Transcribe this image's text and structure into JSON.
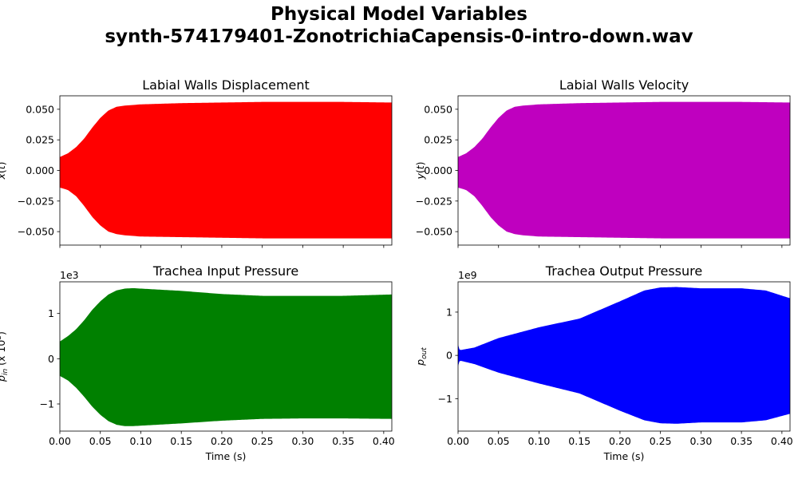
{
  "figure": {
    "title_line1": "Physical Model Variables",
    "title_line2": "synth-574179401-ZonotrichiaCapensis-0-intro-down.wav"
  },
  "chart_data": [
    {
      "type": "area",
      "title": "Labial Walls Displacement",
      "xlabel": "",
      "ylabel": "x(t)",
      "color": "#ff0000",
      "xlim": [
        0.0,
        0.41
      ],
      "ylim": [
        -0.061,
        0.061
      ],
      "xticks": [
        0.0,
        0.05,
        0.1,
        0.15,
        0.2,
        0.25,
        0.3,
        0.35,
        0.4
      ],
      "xtick_labels": [],
      "yticks": [
        -0.05,
        -0.025,
        0.0,
        0.025,
        0.05
      ],
      "ytick_labels": [
        "−0.050",
        "−0.025",
        "0.000",
        "0.025",
        "0.050"
      ],
      "offset_label": "",
      "envelope": {
        "x": [
          0.0,
          0.01,
          0.02,
          0.03,
          0.04,
          0.05,
          0.06,
          0.07,
          0.08,
          0.1,
          0.15,
          0.2,
          0.25,
          0.3,
          0.35,
          0.41
        ],
        "upper": [
          0.011,
          0.014,
          0.019,
          0.026,
          0.035,
          0.043,
          0.049,
          0.052,
          0.053,
          0.054,
          0.055,
          0.0555,
          0.056,
          0.056,
          0.056,
          0.0555
        ],
        "lower": [
          -0.014,
          -0.016,
          -0.021,
          -0.029,
          -0.038,
          -0.045,
          -0.05,
          -0.052,
          -0.053,
          -0.054,
          -0.0545,
          -0.055,
          -0.0555,
          -0.0555,
          -0.0555,
          -0.0555
        ]
      }
    },
    {
      "type": "area",
      "title": "Labial Walls Velocity",
      "xlabel": "",
      "ylabel": "y(t)",
      "color": "#bf00bf",
      "xlim": [
        0.0,
        0.41
      ],
      "ylim": [
        -0.061,
        0.061
      ],
      "xticks": [
        0.0,
        0.05,
        0.1,
        0.15,
        0.2,
        0.25,
        0.3,
        0.35,
        0.4
      ],
      "xtick_labels": [],
      "yticks": [
        -0.05,
        -0.025,
        0.0,
        0.025,
        0.05
      ],
      "ytick_labels": [
        "−0.050",
        "−0.025",
        "0.000",
        "0.025",
        "0.050"
      ],
      "offset_label": "",
      "envelope": {
        "x": [
          0.0,
          0.01,
          0.02,
          0.03,
          0.04,
          0.05,
          0.06,
          0.07,
          0.08,
          0.1,
          0.15,
          0.2,
          0.25,
          0.3,
          0.35,
          0.41
        ],
        "upper": [
          0.011,
          0.014,
          0.019,
          0.026,
          0.035,
          0.043,
          0.049,
          0.052,
          0.053,
          0.054,
          0.055,
          0.0555,
          0.056,
          0.056,
          0.056,
          0.0555
        ],
        "lower": [
          -0.014,
          -0.016,
          -0.021,
          -0.029,
          -0.038,
          -0.045,
          -0.05,
          -0.052,
          -0.053,
          -0.054,
          -0.0545,
          -0.055,
          -0.0555,
          -0.0555,
          -0.0555,
          -0.0555
        ]
      }
    },
    {
      "type": "area",
      "title": "Trachea Input Pressure",
      "xlabel": "Time (s)",
      "ylabel": "p_in (x 10^3)",
      "color": "#008000",
      "xlim": [
        0.0,
        0.41
      ],
      "ylim": [
        -1.6,
        1.7
      ],
      "xticks": [
        0.0,
        0.05,
        0.1,
        0.15,
        0.2,
        0.25,
        0.3,
        0.35,
        0.4
      ],
      "xtick_labels": [
        "0.00",
        "0.05",
        "0.10",
        "0.15",
        "0.20",
        "0.25",
        "0.30",
        "0.35",
        "0.40"
      ],
      "yticks": [
        -1,
        0,
        1
      ],
      "ytick_labels": [
        "−1",
        "0",
        "1"
      ],
      "offset_label": "1e3",
      "envelope": {
        "x": [
          0.0,
          0.01,
          0.02,
          0.03,
          0.04,
          0.05,
          0.06,
          0.07,
          0.08,
          0.09,
          0.1,
          0.15,
          0.2,
          0.25,
          0.3,
          0.35,
          0.41
        ],
        "upper": [
          0.38,
          0.5,
          0.65,
          0.85,
          1.08,
          1.27,
          1.42,
          1.51,
          1.55,
          1.56,
          1.55,
          1.5,
          1.43,
          1.39,
          1.39,
          1.39,
          1.42
        ],
        "lower": [
          -0.38,
          -0.48,
          -0.64,
          -0.84,
          -1.06,
          -1.24,
          -1.38,
          -1.46,
          -1.49,
          -1.49,
          -1.48,
          -1.43,
          -1.37,
          -1.33,
          -1.32,
          -1.32,
          -1.33
        ]
      }
    },
    {
      "type": "area",
      "title": "Trachea Output Pressure",
      "xlabel": "Time (s)",
      "ylabel": "p_out",
      "color": "#0000ff",
      "xlim": [
        0.0,
        0.41
      ],
      "ylim": [
        -1.75,
        1.7
      ],
      "xticks": [
        0.0,
        0.05,
        0.1,
        0.15,
        0.2,
        0.25,
        0.3,
        0.35,
        0.4
      ],
      "xtick_labels": [
        "0.00",
        "0.05",
        "0.10",
        "0.15",
        "0.20",
        "0.25",
        "0.30",
        "0.35",
        "0.40"
      ],
      "yticks": [
        -1,
        0,
        1
      ],
      "ytick_labels": [
        "−1",
        "0",
        "1"
      ],
      "offset_label": "1e9",
      "envelope": {
        "x": [
          0.0,
          0.002,
          0.02,
          0.05,
          0.1,
          0.15,
          0.2,
          0.23,
          0.25,
          0.27,
          0.3,
          0.35,
          0.38,
          0.41
        ],
        "upper": [
          0.25,
          0.12,
          0.18,
          0.4,
          0.65,
          0.85,
          1.25,
          1.5,
          1.57,
          1.58,
          1.55,
          1.55,
          1.5,
          1.32
        ],
        "lower": [
          -0.25,
          -0.12,
          -0.2,
          -0.4,
          -0.65,
          -0.88,
          -1.28,
          -1.5,
          -1.57,
          -1.58,
          -1.55,
          -1.55,
          -1.5,
          -1.35
        ]
      }
    }
  ]
}
